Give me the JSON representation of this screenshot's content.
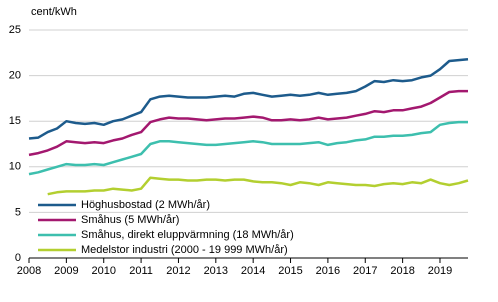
{
  "chart_data": {
    "type": "line",
    "y_label": "cent/kWh",
    "x": [
      2008,
      2008.25,
      2008.5,
      2008.75,
      2009,
      2009.25,
      2009.5,
      2009.75,
      2010,
      2010.25,
      2010.5,
      2010.75,
      2011,
      2011.25,
      2011.5,
      2011.75,
      2012,
      2012.25,
      2012.5,
      2012.75,
      2013,
      2013.25,
      2013.5,
      2013.75,
      2014,
      2014.25,
      2014.5,
      2014.75,
      2015,
      2015.25,
      2015.5,
      2015.75,
      2016,
      2016.25,
      2016.5,
      2016.75,
      2017,
      2017.25,
      2017.5,
      2017.75,
      2018,
      2018.25,
      2018.5,
      2018.75,
      2019,
      2019.25,
      2019.5,
      2019.75
    ],
    "series": [
      {
        "name": "Höghusbostad (2 MWh/år)",
        "color": "#1d5b8c",
        "values": [
          13.1,
          13.2,
          13.8,
          14.2,
          15.0,
          14.8,
          14.7,
          14.8,
          14.6,
          15.0,
          15.2,
          15.6,
          16.0,
          17.4,
          17.7,
          17.8,
          17.7,
          17.6,
          17.6,
          17.6,
          17.7,
          17.8,
          17.7,
          18.0,
          18.1,
          17.9,
          17.7,
          17.8,
          17.9,
          17.8,
          17.9,
          18.1,
          17.9,
          18.0,
          18.1,
          18.3,
          18.8,
          19.4,
          19.3,
          19.5,
          19.4,
          19.5,
          19.8,
          20.0,
          20.7,
          21.6,
          21.7,
          21.8
        ]
      },
      {
        "name": "Småhus (5 MWh/år)",
        "color": "#a3186f",
        "values": [
          11.3,
          11.5,
          11.8,
          12.2,
          12.8,
          12.7,
          12.6,
          12.7,
          12.6,
          12.9,
          13.1,
          13.5,
          13.8,
          14.9,
          15.2,
          15.4,
          15.3,
          15.3,
          15.2,
          15.1,
          15.2,
          15.3,
          15.3,
          15.4,
          15.5,
          15.4,
          15.1,
          15.1,
          15.2,
          15.1,
          15.2,
          15.4,
          15.2,
          15.3,
          15.4,
          15.6,
          15.8,
          16.1,
          16.0,
          16.2,
          16.2,
          16.4,
          16.6,
          17.0,
          17.6,
          18.2,
          18.3,
          18.3
        ]
      },
      {
        "name": "Småhus, direkt eluppvärmning (18 MWh/år)",
        "color": "#3dbfae",
        "values": [
          9.2,
          9.4,
          9.7,
          10.0,
          10.3,
          10.2,
          10.2,
          10.3,
          10.2,
          10.5,
          10.8,
          11.1,
          11.4,
          12.5,
          12.8,
          12.8,
          12.7,
          12.6,
          12.5,
          12.4,
          12.4,
          12.5,
          12.6,
          12.7,
          12.8,
          12.7,
          12.5,
          12.5,
          12.5,
          12.5,
          12.6,
          12.7,
          12.4,
          12.6,
          12.7,
          12.9,
          13.0,
          13.3,
          13.3,
          13.4,
          13.4,
          13.5,
          13.7,
          13.8,
          14.6,
          14.8,
          14.9,
          14.9
        ]
      },
      {
        "name": "Medelstor industri (2000 - 19 999 MWh/år)",
        "color": "#b3cf30",
        "values": [
          null,
          null,
          7.0,
          7.2,
          7.3,
          7.3,
          7.3,
          7.4,
          7.4,
          7.6,
          7.5,
          7.4,
          7.6,
          8.8,
          8.7,
          8.6,
          8.6,
          8.5,
          8.5,
          8.6,
          8.6,
          8.5,
          8.6,
          8.6,
          8.4,
          8.3,
          8.3,
          8.2,
          8.0,
          8.3,
          8.2,
          8.0,
          8.3,
          8.2,
          8.1,
          8.0,
          8.0,
          7.9,
          8.1,
          8.2,
          8.1,
          8.3,
          8.2,
          8.6,
          8.2,
          8.0,
          8.2,
          8.5
        ]
      }
    ],
    "xlim": [
      2008,
      2019.75
    ],
    "xticks": [
      2008,
      2009,
      2010,
      2011,
      2012,
      2013,
      2014,
      2015,
      2016,
      2017,
      2018,
      2019
    ],
    "ylim": [
      0,
      25
    ],
    "yticks": [
      0,
      5,
      10,
      15,
      20,
      25
    ],
    "grid": true,
    "legend": "lower left"
  }
}
